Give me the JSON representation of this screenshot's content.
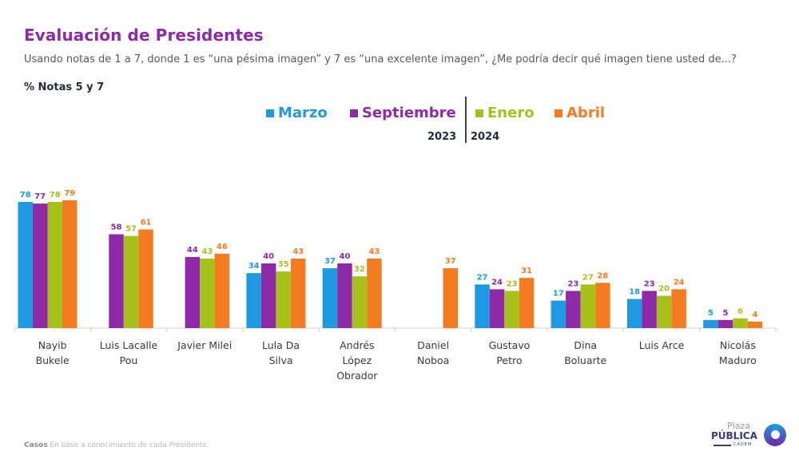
{
  "header": {
    "title": "Evaluación de Presidentes",
    "subtitle": "Usando notas de 1 a 7, donde 1 es “una pésima imagen” y 7 es “una excelente imagen”, ¿Me podría decir qué imagen tiene usted de...?",
    "unit_label": "% Notas 5 y 7"
  },
  "legend": {
    "items": [
      {
        "label": "Marzo",
        "color": "#1e9be0"
      },
      {
        "label": "Septiembre",
        "color": "#8e2aa8"
      },
      {
        "label": "Enero",
        "color": "#a6c21a"
      },
      {
        "label": "Abril",
        "color": "#f47b20"
      }
    ],
    "year_left": "2023",
    "year_right": "2024"
  },
  "chart_data": {
    "type": "bar",
    "title": "Evaluación de Presidentes",
    "xlabel": "",
    "ylabel": "% Notas 5 y 7",
    "ylim": [
      0,
      80
    ],
    "grid": false,
    "legend_position": "top-center",
    "categories": [
      "Nayib Bukele",
      "Luis Lacalle Pou",
      "Javier Milei",
      "Lula Da Silva",
      "Andrés López Obrador",
      "Daniel Noboa",
      "Gustavo Petro",
      "Dina Boluarte",
      "Luis Arce",
      "Nicolás Maduro"
    ],
    "category_lines": [
      [
        "Nayib",
        "Bukele"
      ],
      [
        "Luis Lacalle",
        "Pou"
      ],
      [
        "Javier Milei"
      ],
      [
        "Lula Da",
        "Silva"
      ],
      [
        "Andrés",
        "López",
        "Obrador"
      ],
      [
        "Daniel",
        "Noboa"
      ],
      [
        "Gustavo",
        "Petro"
      ],
      [
        "Dina",
        "Boluarte"
      ],
      [
        "Luis Arce"
      ],
      [
        "Nicolás",
        "Maduro"
      ]
    ],
    "series": [
      {
        "name": "Marzo 2023",
        "color": "#1e9be0",
        "values": [
          78,
          null,
          null,
          34,
          37,
          null,
          27,
          17,
          18,
          5
        ]
      },
      {
        "name": "Septiembre 2023",
        "color": "#8e2aa8",
        "values": [
          77,
          58,
          44,
          40,
          40,
          null,
          24,
          23,
          23,
          5
        ]
      },
      {
        "name": "Enero 2024",
        "color": "#a6c21a",
        "values": [
          78,
          57,
          43,
          35,
          32,
          null,
          23,
          27,
          20,
          6
        ]
      },
      {
        "name": "Abril 2024",
        "color": "#f47b20",
        "values": [
          79,
          61,
          46,
          43,
          43,
          37,
          31,
          28,
          24,
          4
        ]
      }
    ]
  },
  "footer": {
    "cases_label": "Casos",
    "cases_text": "En base a conocimiento de cada Presidente.",
    "logo_top": "Plaza",
    "logo_main": "PÚBLICA",
    "logo_sub": "CADEM"
  }
}
